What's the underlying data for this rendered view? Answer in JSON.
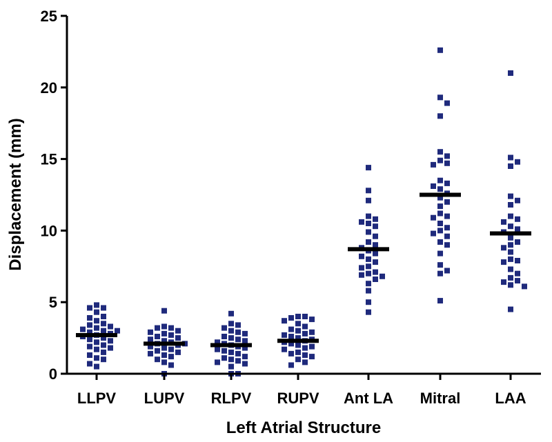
{
  "chart_data": {
    "type": "scatter",
    "xlabel": "Left Atrial Structure",
    "ylabel": "Displacement  (mm)",
    "ylim": [
      0,
      25
    ],
    "yticks": [
      "0",
      "5",
      "10",
      "15",
      "20",
      "25"
    ],
    "categories": [
      "LLPV",
      "LUPV",
      "RLPV",
      "RUPV",
      "Ant LA",
      "Mitral",
      "LAA"
    ],
    "grid": false,
    "marker_color": "#1f2a7c",
    "median_color": "#000000",
    "series": [
      {
        "category": "LLPV",
        "median": 2.7,
        "values": [
          4.8,
          4.6,
          4.6,
          4.3,
          4.0,
          3.9,
          3.7,
          3.5,
          3.4,
          3.3,
          3.2,
          3.1,
          3.0,
          3.0,
          2.9,
          2.8,
          2.7,
          2.6,
          2.5,
          2.4,
          2.3,
          2.2,
          2.0,
          1.9,
          1.8,
          1.7,
          1.5,
          1.3,
          1.1,
          1.0,
          0.7,
          0.5
        ]
      },
      {
        "category": "LUPV",
        "median": 2.1,
        "values": [
          4.4,
          3.3,
          3.2,
          3.2,
          3.0,
          2.9,
          2.8,
          2.7,
          2.6,
          2.5,
          2.4,
          2.3,
          2.2,
          2.1,
          2.1,
          2.0,
          1.9,
          1.8,
          1.7,
          1.6,
          1.5,
          1.4,
          1.3,
          1.2,
          1.0,
          0.8,
          0.6,
          0.0
        ]
      },
      {
        "category": "RLPV",
        "median": 2.0,
        "values": [
          4.2,
          3.5,
          3.4,
          3.2,
          3.0,
          2.9,
          2.8,
          2.6,
          2.5,
          2.4,
          2.3,
          2.2,
          2.1,
          2.0,
          1.9,
          1.8,
          1.7,
          1.6,
          1.5,
          1.4,
          1.2,
          1.1,
          1.0,
          0.9,
          0.8,
          0.7,
          0.5,
          0.0,
          0.0
        ]
      },
      {
        "category": "RUPV",
        "median": 2.3,
        "values": [
          4.0,
          4.0,
          3.9,
          3.8,
          3.7,
          3.5,
          3.3,
          3.1,
          3.0,
          2.9,
          2.8,
          2.7,
          2.6,
          2.5,
          2.4,
          2.3,
          2.2,
          2.1,
          2.0,
          1.9,
          1.8,
          1.7,
          1.5,
          1.4,
          1.3,
          1.2,
          1.0,
          0.8,
          0.6
        ]
      },
      {
        "category": "Ant LA",
        "median": 8.7,
        "values": [
          14.4,
          12.8,
          12.1,
          11.0,
          10.8,
          10.6,
          10.5,
          10.3,
          9.9,
          9.6,
          9.2,
          9.0,
          8.8,
          8.6,
          8.4,
          8.2,
          8.0,
          7.8,
          7.5,
          7.4,
          7.1,
          7.0,
          6.9,
          6.8,
          6.6,
          6.3,
          5.8,
          5.0,
          4.3
        ]
      },
      {
        "category": "Mitral",
        "median": 12.5,
        "values": [
          22.6,
          19.3,
          18.9,
          18.0,
          15.5,
          15.2,
          14.9,
          14.7,
          14.6,
          13.5,
          13.3,
          13.1,
          12.9,
          12.6,
          12.3,
          12.0,
          11.7,
          11.2,
          11.0,
          10.9,
          10.5,
          10.2,
          10.0,
          9.8,
          9.6,
          9.2,
          9.0,
          8.4,
          7.6,
          7.2,
          7.0,
          5.1
        ]
      },
      {
        "category": "LAA",
        "median": 9.8,
        "values": [
          21.0,
          15.1,
          14.8,
          14.5,
          12.4,
          12.1,
          11.8,
          11.0,
          10.8,
          10.6,
          10.3,
          10.1,
          9.9,
          9.5,
          9.2,
          9.0,
          8.8,
          8.5,
          8.0,
          7.9,
          7.8,
          7.3,
          7.0,
          6.7,
          6.5,
          6.4,
          6.2,
          6.1,
          4.5
        ]
      }
    ]
  }
}
